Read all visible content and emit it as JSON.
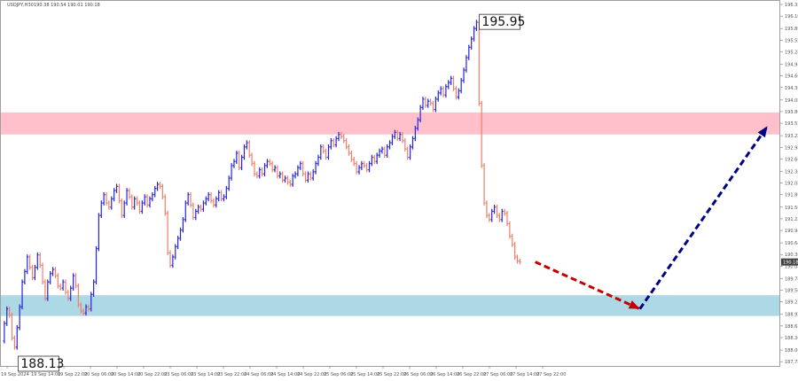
{
  "header": {
    "symbol": "USDJPY,H30",
    "ohlc": "190.38 190.54 190.01 190.18"
  },
  "colors": {
    "bull": "#2424e0",
    "bear": "#f07e68",
    "resistance_zone": "#ffc0cb",
    "support_zone": "#add8e6",
    "forecast_down_arrow": "#c00000",
    "forecast_up_arrow": "#000080",
    "price_tag_bg": "#404040"
  },
  "chart_data": {
    "type": "ohlc",
    "symbol": "USDJPY",
    "timeframe": "H30",
    "ylim": [
      187.72,
      196.38
    ],
    "grid": false,
    "x_ticks": [
      "19 Sep 2024",
      "19 Sep 14:00",
      "19 Sep 22:00",
      "20 Sep 06:00",
      "20 Sep 14:00",
      "20 Sep 22:00",
      "23 Sep 06:00",
      "23 Sep 14:00",
      "23 Sep 22:00",
      "24 Sep 06:00",
      "24 Sep 14:00",
      "24 Sep 22:00",
      "25 Sep 06:00",
      "25 Sep 14:00",
      "25 Sep 22:00",
      "26 Sep 06:00",
      "26 Sep 14:00",
      "26 Sep 22:00",
      "27 Sep 06:00",
      "27 Sep 14:00",
      "27 Sep 22:00"
    ],
    "y_ticks": [
      "196.38",
      "196.10",
      "195.80",
      "195.52",
      "195.24",
      "194.94",
      "194.66",
      "194.38",
      "194.08",
      "193.80",
      "193.52",
      "193.22",
      "192.94",
      "192.66",
      "192.36",
      "192.08",
      "191.80",
      "191.50",
      "191.22",
      "190.94",
      "190.64",
      "190.36",
      "190.08",
      "189.78",
      "189.50",
      "189.22",
      "188.92",
      "188.64",
      "188.36",
      "188.06",
      "187.78"
    ],
    "current_price": "190.18",
    "annotations": [
      {
        "text": "195.95",
        "value": 195.95
      },
      {
        "text": "188.13",
        "value": 188.13
      }
    ],
    "zones": [
      {
        "kind": "resistance",
        "from": 193.25,
        "to": 193.78
      },
      {
        "kind": "support",
        "from": 188.88,
        "to": 189.38
      }
    ],
    "forecast": [
      {
        "from_bar": 209,
        "from_price": 190.18,
        "to_bar": 250,
        "to_price": 189.05
      },
      {
        "from_bar": 250,
        "from_price": 189.05,
        "to_bar": 300,
        "to_price": 193.45
      }
    ],
    "path": [
      188.28,
      188.7,
      189.05,
      188.9,
      188.35,
      188.13,
      188.6,
      189.1,
      189.7,
      189.95,
      190.3,
      190.05,
      189.8,
      190.05,
      190.35,
      190.1,
      189.7,
      189.3,
      189.7,
      189.9,
      190.0,
      189.85,
      189.6,
      189.55,
      189.7,
      189.45,
      189.3,
      189.55,
      189.85,
      189.6,
      189.15,
      189.0,
      188.95,
      189.1,
      189.05,
      189.4,
      189.7,
      190.5,
      191.3,
      191.6,
      191.8,
      191.6,
      191.5,
      191.7,
      191.9,
      192.0,
      191.65,
      191.3,
      191.6,
      191.9,
      191.75,
      191.5,
      191.7,
      191.6,
      191.4,
      191.6,
      191.75,
      191.55,
      191.7,
      191.8,
      191.95,
      192.05,
      192.0,
      191.75,
      191.35,
      190.4,
      190.1,
      190.3,
      190.55,
      190.75,
      190.95,
      191.2,
      191.6,
      191.8,
      191.55,
      191.25,
      191.4,
      191.5,
      191.45,
      191.6,
      191.7,
      191.8,
      191.65,
      191.55,
      191.7,
      191.85,
      191.7,
      191.75,
      191.95,
      192.2,
      192.5,
      192.6,
      192.8,
      192.45,
      192.7,
      192.95,
      193.05,
      192.75,
      192.55,
      192.3,
      192.25,
      192.4,
      192.3,
      192.5,
      192.6,
      192.55,
      192.4,
      192.45,
      192.25,
      192.3,
      192.15,
      192.2,
      192.1,
      192.05,
      192.25,
      192.3,
      192.45,
      192.55,
      192.3,
      192.15,
      192.3,
      192.2,
      192.35,
      192.55,
      192.7,
      192.95,
      192.85,
      192.7,
      192.95,
      193.1,
      193.0,
      193.15,
      193.25,
      193.2,
      193.1,
      192.95,
      192.8,
      192.65,
      192.55,
      192.35,
      192.45,
      192.55,
      192.5,
      192.4,
      192.55,
      192.7,
      192.6,
      192.75,
      192.85,
      192.9,
      192.75,
      192.95,
      193.05,
      193.2,
      193.3,
      193.15,
      193.25,
      193.1,
      192.9,
      192.7,
      192.95,
      193.15,
      193.4,
      193.6,
      193.9,
      194.1,
      193.95,
      194.05,
      194.0,
      193.85,
      194.1,
      194.25,
      194.35,
      194.2,
      194.4,
      194.5,
      194.6,
      194.35,
      194.15,
      194.3,
      194.55,
      194.8,
      195.1,
      195.35,
      195.55,
      195.8,
      195.95,
      194.0,
      192.5,
      191.6,
      191.3,
      191.2,
      191.4,
      191.5,
      191.3,
      191.2,
      191.4,
      191.35,
      191.1,
      190.8,
      190.6,
      190.3,
      190.2,
      190.18
    ]
  }
}
